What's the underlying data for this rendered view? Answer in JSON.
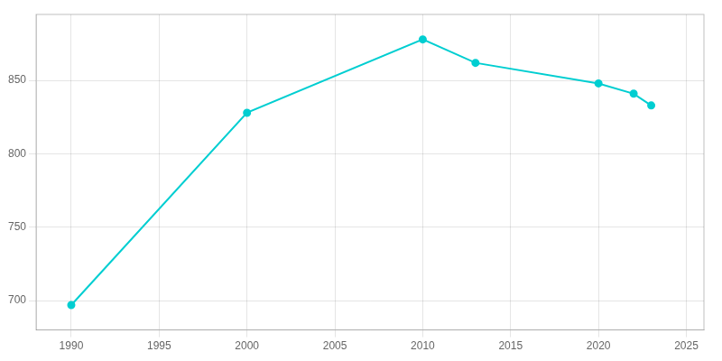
{
  "chart_data": {
    "type": "line",
    "x": [
      1990,
      2000,
      2010,
      2013,
      2020,
      2022,
      2023
    ],
    "values": [
      697,
      828,
      878,
      862,
      848,
      841,
      833
    ],
    "color": "#00CED1",
    "marker": "circle",
    "xlim": [
      1988,
      2026
    ],
    "xticks": [
      1990,
      1995,
      2000,
      2005,
      2010,
      2015,
      2020,
      2025
    ],
    "ylim": [
      680,
      895
    ],
    "yticks": [
      700,
      750,
      800,
      850
    ],
    "grid": true
  }
}
